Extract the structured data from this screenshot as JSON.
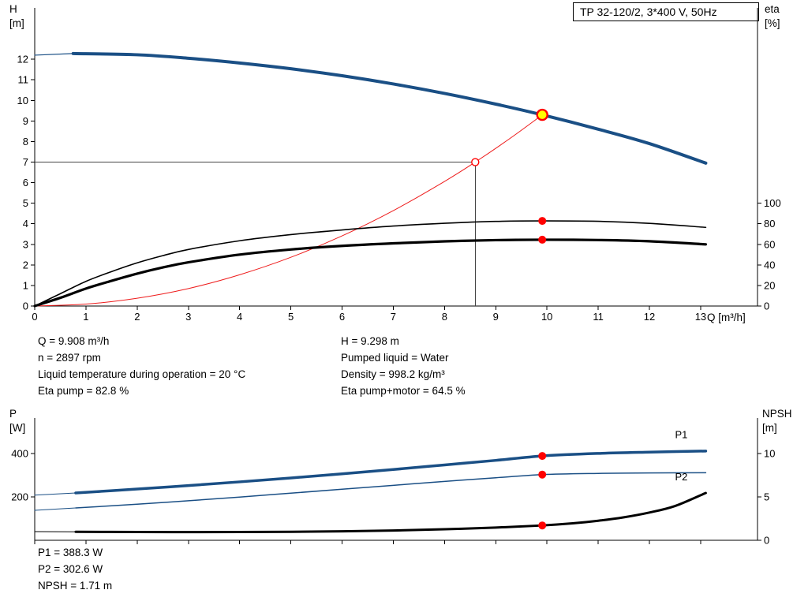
{
  "title_box": "TP 32-120/2, 3*400 V, 50Hz",
  "labels": {
    "h": "H",
    "h_unit": "[m]",
    "eta": "eta",
    "eta_unit": "[%]",
    "q_axis": "Q [m³/h]",
    "p": "P",
    "p_unit": "[W]",
    "npsh": "NPSH",
    "npsh_unit": "[m]"
  },
  "colors": {
    "curve_blue": "#1a4f85",
    "curve_black": "#000000",
    "curve_red": "#ee1c1c",
    "marker_red": "#ff0000",
    "marker_yellow": "#ffff00",
    "annotation_blue": "#2e6fad",
    "guide_gray": "#444444"
  },
  "results_top": {
    "col1": [
      "Q = 9.908 m³/h",
      "n = 2897 rpm",
      "Liquid temperature during operation = 20 °C",
      "Eta pump = 82.8 %"
    ],
    "col2": [
      "H = 9.298 m",
      "Pumped liquid = Water",
      "Density = 998.2 kg/m³",
      "Eta pump+motor = 64.5 %"
    ]
  },
  "results_bottom": [
    "P1 = 388.3 W",
    "P2 = 302.6 W",
    "NPSH = 1.71 m"
  ],
  "chart_data": [
    {
      "type": "line",
      "title": "TP 32-120/2, 3*400 V, 50Hz",
      "grid": false,
      "legend_position": "none",
      "x_axis": {
        "label": "Q [m³/h]",
        "min": 0,
        "max": 14.11,
        "ticks": [
          0,
          1,
          2,
          3,
          4,
          5,
          6,
          7,
          8,
          9,
          10,
          11,
          12,
          13
        ],
        "show_tick_labels": true
      },
      "y_left": {
        "label": "H [m]",
        "min": 0,
        "max": 14.5,
        "ticks": [
          0,
          1,
          2,
          3,
          4,
          5,
          6,
          7,
          8,
          9,
          10,
          11,
          12
        ]
      },
      "y_right": {
        "label": "eta [%]",
        "min": 0,
        "max": 290,
        "ticks": [
          0,
          20,
          40,
          60,
          80,
          100
        ]
      },
      "series": [
        {
          "name": "pump-curve-link",
          "axis": "left",
          "color": "#1a4f85",
          "width": 1.2,
          "points": [
            [
              0,
              12.2
            ],
            [
              0.75,
              12.28
            ]
          ]
        },
        {
          "name": "pump-curve",
          "axis": "left",
          "color": "#1a4f85",
          "width": 4,
          "points": [
            [
              0.75,
              12.28
            ],
            [
              2,
              12.22
            ],
            [
              3,
              12.05
            ],
            [
              4,
              11.82
            ],
            [
              5,
              11.54
            ],
            [
              6,
              11.2
            ],
            [
              7,
              10.8
            ],
            [
              8,
              10.34
            ],
            [
              9,
              9.82
            ],
            [
              9.908,
              9.298
            ],
            [
              11,
              8.6
            ],
            [
              12,
              7.9
            ],
            [
              13.1,
              6.95
            ]
          ]
        },
        {
          "name": "system-curve",
          "axis": "left",
          "color": "#ee1c1c",
          "width": 1,
          "points": [
            [
              0,
              0
            ],
            [
              1,
              0.095
            ],
            [
              2,
              0.38
            ],
            [
              3,
              0.85
            ],
            [
              4,
              1.52
            ],
            [
              5,
              2.37
            ],
            [
              6,
              3.41
            ],
            [
              7,
              4.64
            ],
            [
              8,
              6.06
            ],
            [
              8.6,
              7.0
            ],
            [
              9.3,
              8.19
            ],
            [
              9.908,
              9.298
            ]
          ]
        },
        {
          "name": "eta-pump-curve",
          "axis": "right",
          "color": "#000000",
          "width": 1.6,
          "points": [
            [
              0,
              0
            ],
            [
              0.5,
              12
            ],
            [
              1,
              24
            ],
            [
              1.5,
              33.5
            ],
            [
              2,
              42
            ],
            [
              2.5,
              49
            ],
            [
              3,
              55
            ],
            [
              4,
              63.5
            ],
            [
              5,
              69.5
            ],
            [
              6,
              74
            ],
            [
              7,
              77.8
            ],
            [
              8,
              80.5
            ],
            [
              9,
              82.3
            ],
            [
              9.908,
              82.8
            ],
            [
              11,
              82.4
            ],
            [
              12,
              80.4
            ],
            [
              13.1,
              76.5
            ]
          ]
        },
        {
          "name": "eta-pump-motor-curve",
          "axis": "right",
          "color": "#000000",
          "width": 3.2,
          "points": [
            [
              0,
              0
            ],
            [
              0.5,
              8
            ],
            [
              1,
              17
            ],
            [
              1.5,
              24.5
            ],
            [
              2,
              31.5
            ],
            [
              2.5,
              37.5
            ],
            [
              3,
              42.5
            ],
            [
              4,
              50
            ],
            [
              5,
              55
            ],
            [
              6,
              58.5
            ],
            [
              7,
              61
            ],
            [
              8,
              62.9
            ],
            [
              9,
              64.1
            ],
            [
              9.908,
              64.5
            ],
            [
              11,
              64.2
            ],
            [
              12,
              63
            ],
            [
              13.1,
              60
            ]
          ]
        }
      ],
      "guides": [
        {
          "type": "hline",
          "y": 7.0,
          "x1": 0,
          "x2": 8.6
        },
        {
          "type": "vline",
          "x": 8.6,
          "y1": 0,
          "y2": 7.0
        }
      ],
      "markers": [
        {
          "x": 9.908,
          "y": 9.298,
          "axis": "left",
          "style": "duty-yellow",
          "name": "duty-point-marker"
        },
        {
          "x": 8.6,
          "y": 7.0,
          "axis": "left",
          "style": "open-red",
          "name": "specified-point-marker"
        },
        {
          "x": 9.908,
          "y": 82.8,
          "axis": "right",
          "style": "dot-red",
          "name": "eta-pump-duty-marker"
        },
        {
          "x": 9.908,
          "y": 64.5,
          "axis": "right",
          "style": "dot-red",
          "name": "eta-pump-motor-duty-marker"
        }
      ],
      "annotations": []
    },
    {
      "type": "line",
      "title": "",
      "grid": false,
      "legend_position": "inline-right",
      "x_axis": {
        "label": "",
        "min": 0,
        "max": 14.11,
        "ticks": [
          0,
          1,
          2,
          3,
          4,
          5,
          6,
          7,
          8,
          9,
          10,
          11,
          12,
          13
        ],
        "show_tick_labels": false
      },
      "y_left": {
        "label": "P [W]",
        "min": 0,
        "max": 563,
        "ticks": [
          200,
          400
        ]
      },
      "y_right": {
        "label": "NPSH [m]",
        "min": 0,
        "max": 14.09,
        "ticks": [
          0,
          5,
          10
        ]
      },
      "series": [
        {
          "name": "p1-curve-link",
          "axis": "left",
          "color": "#1a4f85",
          "width": 1,
          "points": [
            [
              0,
              208
            ],
            [
              0.8,
              218
            ]
          ]
        },
        {
          "name": "p1-curve",
          "axis": "left",
          "color": "#1a4f85",
          "width": 3.5,
          "points": [
            [
              0.8,
              218
            ],
            [
              2,
              236
            ],
            [
              3,
              252
            ],
            [
              4,
              269
            ],
            [
              5,
              287
            ],
            [
              6,
              306
            ],
            [
              7,
              326
            ],
            [
              8,
              347
            ],
            [
              9,
              368
            ],
            [
              9.908,
              388.3
            ],
            [
              11,
              400
            ],
            [
              12,
              406
            ],
            [
              13.1,
              411
            ]
          ]
        },
        {
          "name": "p2-curve-link",
          "axis": "left",
          "color": "#1a4f85",
          "width": 1,
          "points": [
            [
              0,
              138
            ],
            [
              0.8,
              149
            ]
          ]
        },
        {
          "name": "p2-curve",
          "axis": "left",
          "color": "#1a4f85",
          "width": 1.5,
          "points": [
            [
              0.8,
              149
            ],
            [
              2,
              166
            ],
            [
              3,
              182
            ],
            [
              4,
              199
            ],
            [
              5,
              217
            ],
            [
              6,
              235
            ],
            [
              7,
              253
            ],
            [
              8,
              271
            ],
            [
              9,
              288
            ],
            [
              9.908,
              302.6
            ],
            [
              11,
              308
            ],
            [
              12,
              310
            ],
            [
              13.1,
              311
            ]
          ]
        },
        {
          "name": "npsh-curve-link",
          "axis": "right",
          "color": "#000000",
          "width": 1,
          "points": [
            [
              0,
              1.0
            ],
            [
              0.8,
              0.98
            ]
          ]
        },
        {
          "name": "npsh-curve",
          "axis": "right",
          "color": "#000000",
          "width": 3,
          "points": [
            [
              0.8,
              0.98
            ],
            [
              2,
              0.95
            ],
            [
              3,
              0.94
            ],
            [
              4,
              0.95
            ],
            [
              5,
              0.98
            ],
            [
              6,
              1.03
            ],
            [
              7,
              1.12
            ],
            [
              8,
              1.27
            ],
            [
              9,
              1.47
            ],
            [
              9.908,
              1.71
            ],
            [
              10.5,
              1.95
            ],
            [
              11,
              2.25
            ],
            [
              11.5,
              2.65
            ],
            [
              12,
              3.2
            ],
            [
              12.5,
              3.95
            ],
            [
              13.1,
              5.45
            ]
          ]
        }
      ],
      "guides": [],
      "markers": [
        {
          "x": 9.908,
          "y": 388.3,
          "axis": "left",
          "style": "dot-red",
          "name": "p1-duty-marker"
        },
        {
          "x": 9.908,
          "y": 302.6,
          "axis": "left",
          "style": "dot-red",
          "name": "p2-duty-marker"
        },
        {
          "x": 9.908,
          "y": 1.71,
          "axis": "right",
          "style": "dot-red",
          "name": "npsh-duty-marker"
        }
      ],
      "annotations": [
        {
          "text": "P1",
          "x": 12.5,
          "y": 470,
          "axis": "left",
          "color": "#2e6fad",
          "name": "p1-curve-label"
        },
        {
          "text": "P2",
          "x": 12.5,
          "y": 276,
          "axis": "left",
          "color": "#2e6fad",
          "name": "p2-curve-label"
        }
      ]
    }
  ]
}
